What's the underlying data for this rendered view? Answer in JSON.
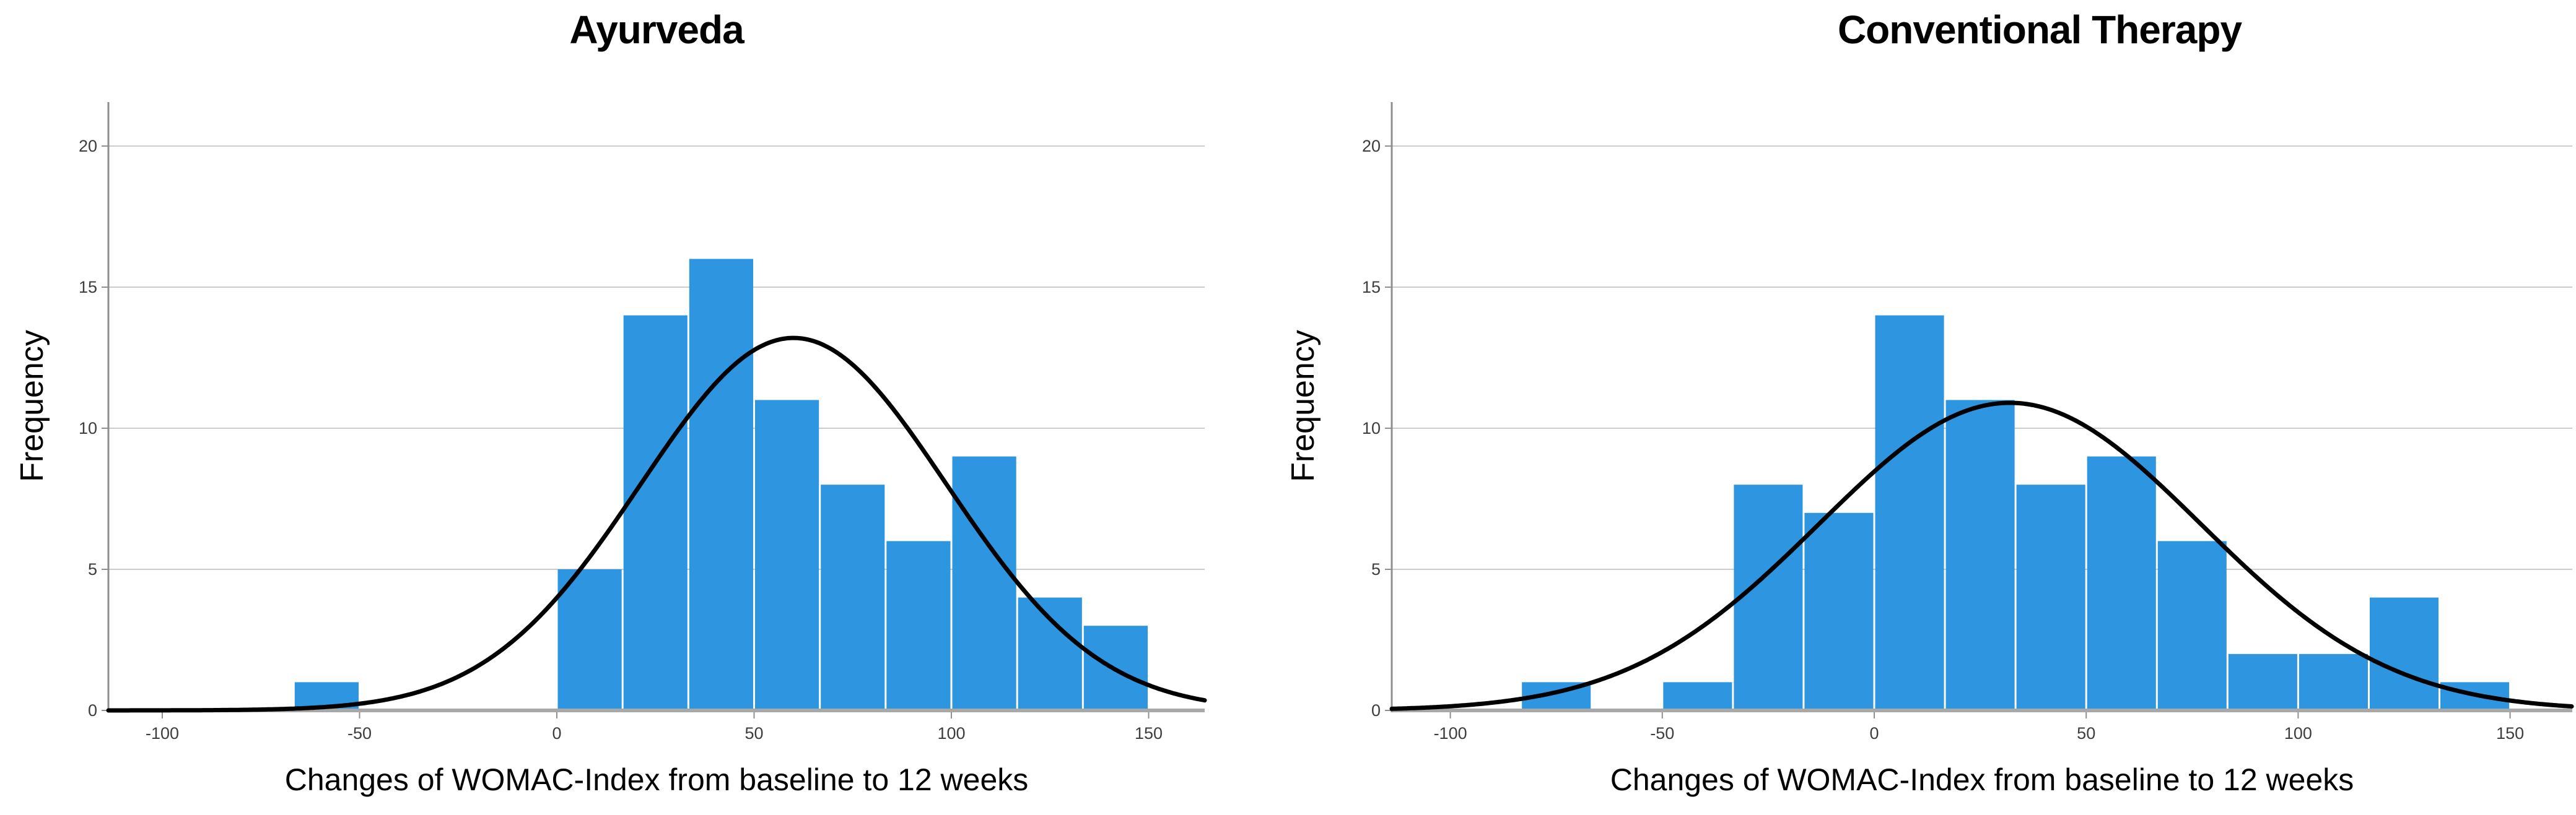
{
  "figure": {
    "description": "Two side-by-side SPSS-style histograms with fitted normal curves"
  },
  "colors": {
    "bar_fill": "#2E96E0",
    "curve": "#000000",
    "gridline": "#CBCBCB",
    "axis_line": "#8F8F8F",
    "baseline": "#A8A8A8",
    "tick_label": "#3D3D3D",
    "text": "#000000",
    "background": "#FFFFFF"
  },
  "chart_data": [
    {
      "type": "bar",
      "chart_kind": "histogram",
      "title": "Ayurveda",
      "xlabel": "Changes of WOMAC-Index from baseline to 12 weeks",
      "ylabel": "Frequency",
      "x_ticks": [
        -100,
        -50,
        0,
        50,
        100,
        150
      ],
      "y_ticks": [
        0,
        5,
        10,
        15,
        20
      ],
      "xlim": [
        -114,
        164.5
      ],
      "ylim": [
        0,
        21.6
      ],
      "grid": "horizontal-y-only",
      "legend": "none",
      "bin_width": 16.667,
      "bins": [
        {
          "start": -66.67,
          "end": -50,
          "count": 1
        },
        {
          "start": 0,
          "end": 16.67,
          "count": 5
        },
        {
          "start": 16.67,
          "end": 33.33,
          "count": 14
        },
        {
          "start": 33.33,
          "end": 50,
          "count": 16
        },
        {
          "start": 50,
          "end": 66.67,
          "count": 11
        },
        {
          "start": 66.67,
          "end": 83.33,
          "count": 8
        },
        {
          "start": 83.33,
          "end": 100,
          "count": 6
        },
        {
          "start": 100,
          "end": 116.67,
          "count": 9
        },
        {
          "start": 116.67,
          "end": 133.33,
          "count": 4
        },
        {
          "start": 133.33,
          "end": 150,
          "count": 3
        }
      ],
      "normal_curve": {
        "mean": 60,
        "sd": 38.8,
        "peak_height": 13.2
      }
    },
    {
      "type": "bar",
      "chart_kind": "histogram",
      "title": "Conventional Therapy",
      "xlabel": "Changes of WOMAC-Index from baseline to 12 weeks",
      "ylabel": "Frequency",
      "x_ticks": [
        -100,
        -50,
        0,
        50,
        100,
        150
      ],
      "y_ticks": [
        0,
        5,
        10,
        15,
        20
      ],
      "xlim": [
        -114,
        164.5
      ],
      "ylim": [
        0,
        21.6
      ],
      "grid": "horizontal-y-only",
      "legend": "none",
      "bin_width": 16.667,
      "bins": [
        {
          "start": -83.33,
          "end": -66.67,
          "count": 1
        },
        {
          "start": -50,
          "end": -33.33,
          "count": 1
        },
        {
          "start": -33.33,
          "end": -16.67,
          "count": 8
        },
        {
          "start": -16.67,
          "end": 0,
          "count": 7
        },
        {
          "start": 0,
          "end": 16.67,
          "count": 14
        },
        {
          "start": 16.67,
          "end": 33.33,
          "count": 11
        },
        {
          "start": 33.33,
          "end": 50,
          "count": 8
        },
        {
          "start": 50,
          "end": 66.67,
          "count": 9
        },
        {
          "start": 66.67,
          "end": 83.33,
          "count": 6
        },
        {
          "start": 83.33,
          "end": 100,
          "count": 2
        },
        {
          "start": 100,
          "end": 116.67,
          "count": 2
        },
        {
          "start": 116.67,
          "end": 133.33,
          "count": 4
        },
        {
          "start": 133.33,
          "end": 150,
          "count": 1
        }
      ],
      "normal_curve": {
        "mean": 32,
        "sd": 45,
        "peak_height": 10.9
      }
    }
  ]
}
